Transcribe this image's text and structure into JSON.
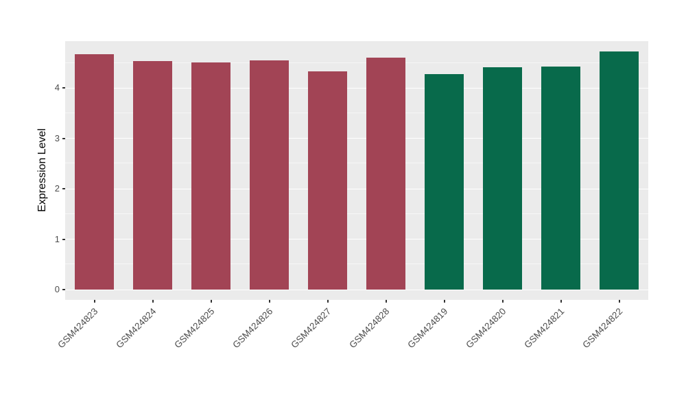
{
  "figure": {
    "background": "#FFFFFF"
  },
  "chart_data": {
    "type": "bar",
    "title": "",
    "xlabel": "",
    "ylabel": "Expression Level",
    "categories": [
      "GSM424823",
      "GSM424824",
      "GSM424825",
      "GSM424826",
      "GSM424827",
      "GSM424828",
      "GSM424819",
      "GSM424820",
      "GSM424821",
      "GSM424822"
    ],
    "values": [
      4.67,
      4.53,
      4.51,
      4.55,
      4.33,
      4.6,
      4.28,
      4.41,
      4.43,
      4.73
    ],
    "bar_colors": [
      "#A24455",
      "#A24455",
      "#A24455",
      "#A24455",
      "#A24455",
      "#A24455",
      "#086A4B",
      "#086A4B",
      "#086A4B",
      "#086A4B"
    ],
    "group_colors": {
      "left_group_color": "#A24455",
      "right_group_color": "#086A4B"
    },
    "y_ticks": [
      0,
      1,
      2,
      3,
      4
    ],
    "y_tick_labels": [
      "0",
      "1",
      "2",
      "3",
      "4"
    ],
    "y_minor_ticks": [
      0.5,
      1.5,
      2.5,
      3.5,
      4.5
    ],
    "ylim": [
      0,
      4.93
    ],
    "grid": "major+minor horizontal white lines",
    "legend": false,
    "panel_background": "#EBEBEB",
    "grid_color": "#FFFFFF",
    "tick_color": "#333333",
    "axis_text_color": "#4D4D4D",
    "axis_title_color": "#000000"
  }
}
